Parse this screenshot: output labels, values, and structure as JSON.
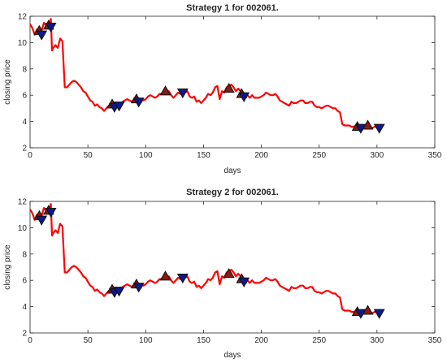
{
  "chart_data": [
    {
      "type": "line",
      "title": "Strategy 1 for 002061.",
      "xlabel": "days",
      "ylabel": "closing price",
      "xlim": [
        0,
        350
      ],
      "ylim": [
        2,
        12
      ],
      "x_ticks": [
        "0",
        "50",
        "100",
        "150",
        "200",
        "250",
        "300",
        "350"
      ],
      "y_ticks": [
        "2",
        "4",
        "6",
        "8",
        "10",
        "12"
      ],
      "grid": false,
      "series": [
        {
          "x": [
            0,
            2,
            4,
            6,
            8,
            10,
            12,
            14,
            16,
            18,
            19,
            20,
            22,
            24,
            26,
            28,
            30,
            32,
            34,
            36,
            38,
            40,
            42,
            44,
            46,
            48,
            50,
            52,
            54,
            56,
            58,
            60,
            62,
            64,
            66,
            68,
            70,
            72,
            74,
            76,
            78,
            80,
            82,
            84,
            86,
            88,
            90,
            92,
            94,
            96,
            98,
            100,
            102,
            104,
            106,
            108,
            110,
            112,
            114,
            116,
            118,
            120,
            122,
            124,
            126,
            128,
            130,
            132,
            134,
            136,
            138,
            140,
            142,
            144,
            146,
            148,
            150,
            152,
            154,
            156,
            158,
            160,
            162,
            164,
            166,
            168,
            170,
            172,
            174,
            176,
            178,
            180,
            182,
            184,
            186,
            188,
            190,
            192,
            194,
            196,
            198,
            200,
            202,
            204,
            206,
            208,
            210,
            212,
            214,
            216,
            218,
            220,
            222,
            224,
            226,
            228,
            230,
            232,
            234,
            236,
            238,
            240,
            242,
            244,
            246,
            248,
            250,
            252,
            254,
            256,
            258,
            260,
            262,
            264,
            266,
            268,
            270,
            272,
            274,
            276,
            278,
            280,
            282,
            284,
            286,
            288,
            290,
            292,
            294,
            296,
            298,
            300,
            302
          ],
          "values": [
            11.4,
            11.1,
            10.6,
            11.0,
            10.7,
            10.9,
            11.5,
            11.3,
            11.2,
            11.8,
            9.4,
            9.6,
            9.8,
            9.6,
            10.3,
            10.1,
            6.6,
            6.6,
            6.8,
            7.0,
            7.1,
            7.0,
            6.8,
            6.6,
            6.3,
            6.2,
            5.9,
            5.6,
            5.5,
            5.2,
            5.3,
            5.1,
            5.0,
            4.8,
            5.0,
            5.2,
            5.3,
            5.2,
            5.3,
            5.2,
            5.3,
            5.5,
            5.6,
            5.7,
            5.6,
            5.5,
            5.7,
            5.9,
            5.5,
            5.6,
            5.6,
            5.7,
            5.9,
            6.0,
            5.9,
            5.8,
            5.9,
            6.1,
            6.1,
            6.3,
            6.2,
            6.3,
            6.0,
            5.8,
            6.0,
            6.2,
            6.1,
            6.2,
            6.2,
            6.3,
            5.9,
            5.8,
            5.9,
            5.5,
            5.6,
            5.4,
            5.6,
            5.8,
            6.1,
            6.0,
            6.2,
            6.6,
            6.7,
            5.7,
            6.3,
            6.2,
            6.6,
            6.7,
            6.8,
            6.6,
            6.3,
            6.5,
            6.3,
            6.0,
            5.9,
            6.0,
            5.8,
            6.0,
            5.8,
            5.8,
            5.8,
            5.9,
            6.0,
            6.2,
            6.1,
            6.0,
            6.0,
            6.1,
            5.9,
            5.6,
            5.5,
            5.4,
            5.3,
            5.2,
            5.5,
            5.4,
            5.4,
            5.5,
            5.6,
            5.6,
            5.4,
            5.4,
            5.5,
            5.5,
            5.2,
            5.1,
            5.1,
            5.0,
            5.1,
            5.2,
            5.2,
            5.1,
            5.0,
            5.0,
            4.8,
            4.7,
            3.8,
            3.7,
            3.7,
            3.7,
            3.6,
            3.6,
            3.7,
            3.6,
            3.5,
            3.6,
            3.6,
            3.7,
            3.6,
            3.5,
            3.6,
            3.6,
            3.6
          ],
          "color": "#ff0000"
        }
      ],
      "markers": [
        {
          "x": 8,
          "y": 10.9,
          "kind": "buy",
          "fill": "#8b1a10"
        },
        {
          "x": 10,
          "y": 10.6,
          "kind": "sell",
          "fill": "#0a1a90"
        },
        {
          "x": 16,
          "y": 11.3,
          "kind": "buy",
          "fill": "#8b1a10"
        },
        {
          "x": 18,
          "y": 11.2,
          "kind": "sell",
          "fill": "#0a1a90"
        },
        {
          "x": 71,
          "y": 5.3,
          "kind": "buy",
          "fill": "#8b1a10"
        },
        {
          "x": 73,
          "y": 5.1,
          "kind": "sell",
          "fill": "#0a1a90"
        },
        {
          "x": 77,
          "y": 5.2,
          "kind": "sell",
          "fill": "#0a1a90"
        },
        {
          "x": 92,
          "y": 5.7,
          "kind": "buy",
          "fill": "#8b1a10"
        },
        {
          "x": 94,
          "y": 5.5,
          "kind": "sell",
          "fill": "#0a1a90"
        },
        {
          "x": 117,
          "y": 6.3,
          "kind": "buy",
          "fill": "#8b1a10"
        },
        {
          "x": 132,
          "y": 6.2,
          "kind": "sell",
          "fill": "#0a1a90"
        },
        {
          "x": 172,
          "y": 6.5,
          "kind": "buy",
          "fill": "#8b1a10"
        },
        {
          "x": 183,
          "y": 6.1,
          "kind": "buy",
          "fill": "#8b1a10"
        },
        {
          "x": 185,
          "y": 5.9,
          "kind": "sell",
          "fill": "#0a1a90"
        },
        {
          "x": 283,
          "y": 3.6,
          "kind": "buy",
          "fill": "#8b1a10"
        },
        {
          "x": 286,
          "y": 3.5,
          "kind": "sell",
          "fill": "#0a1a90"
        },
        {
          "x": 292,
          "y": 3.7,
          "kind": "buy",
          "fill": "#8b1a10"
        },
        {
          "x": 302,
          "y": 3.5,
          "kind": "sell",
          "fill": "#0a1a90"
        }
      ]
    },
    {
      "type": "line",
      "title": "Strategy 2 for 002061.",
      "xlabel": "days",
      "ylabel": "closing price",
      "xlim": [
        0,
        350
      ],
      "ylim": [
        2,
        12
      ],
      "x_ticks": [
        "0",
        "50",
        "100",
        "150",
        "200",
        "250",
        "300",
        "350"
      ],
      "y_ticks": [
        "2",
        "4",
        "6",
        "8",
        "10",
        "12"
      ],
      "grid": false,
      "series": [
        {
          "x": [
            0,
            2,
            4,
            6,
            8,
            10,
            12,
            14,
            16,
            18,
            19,
            20,
            22,
            24,
            26,
            28,
            30,
            32,
            34,
            36,
            38,
            40,
            42,
            44,
            46,
            48,
            50,
            52,
            54,
            56,
            58,
            60,
            62,
            64,
            66,
            68,
            70,
            72,
            74,
            76,
            78,
            80,
            82,
            84,
            86,
            88,
            90,
            92,
            94,
            96,
            98,
            100,
            102,
            104,
            106,
            108,
            110,
            112,
            114,
            116,
            118,
            120,
            122,
            124,
            126,
            128,
            130,
            132,
            134,
            136,
            138,
            140,
            142,
            144,
            146,
            148,
            150,
            152,
            154,
            156,
            158,
            160,
            162,
            164,
            166,
            168,
            170,
            172,
            174,
            176,
            178,
            180,
            182,
            184,
            186,
            188,
            190,
            192,
            194,
            196,
            198,
            200,
            202,
            204,
            206,
            208,
            210,
            212,
            214,
            216,
            218,
            220,
            222,
            224,
            226,
            228,
            230,
            232,
            234,
            236,
            238,
            240,
            242,
            244,
            246,
            248,
            250,
            252,
            254,
            256,
            258,
            260,
            262,
            264,
            266,
            268,
            270,
            272,
            274,
            276,
            278,
            280,
            282,
            284,
            286,
            288,
            290,
            292,
            294,
            296,
            298,
            300,
            302
          ],
          "values": [
            11.4,
            11.1,
            10.6,
            11.0,
            10.7,
            10.9,
            11.5,
            11.3,
            11.2,
            11.8,
            9.4,
            9.6,
            9.8,
            9.6,
            10.3,
            10.1,
            6.6,
            6.6,
            6.8,
            7.0,
            7.1,
            7.0,
            6.8,
            6.6,
            6.3,
            6.2,
            5.9,
            5.6,
            5.5,
            5.2,
            5.3,
            5.1,
            5.0,
            4.8,
            5.0,
            5.2,
            5.3,
            5.2,
            5.3,
            5.2,
            5.3,
            5.5,
            5.6,
            5.7,
            5.6,
            5.5,
            5.7,
            5.9,
            5.5,
            5.6,
            5.6,
            5.7,
            5.9,
            6.0,
            5.9,
            5.8,
            5.9,
            6.1,
            6.1,
            6.3,
            6.2,
            6.3,
            6.0,
            5.8,
            6.0,
            6.2,
            6.1,
            6.2,
            6.2,
            6.3,
            5.9,
            5.8,
            5.9,
            5.5,
            5.6,
            5.4,
            5.6,
            5.8,
            6.1,
            6.0,
            6.2,
            6.6,
            6.7,
            5.7,
            6.3,
            6.2,
            6.6,
            6.7,
            6.8,
            6.6,
            6.3,
            6.5,
            6.3,
            6.0,
            5.9,
            6.0,
            5.8,
            6.0,
            5.8,
            5.8,
            5.8,
            5.9,
            6.0,
            6.2,
            6.1,
            6.0,
            6.0,
            6.1,
            5.9,
            5.6,
            5.5,
            5.4,
            5.3,
            5.2,
            5.5,
            5.4,
            5.4,
            5.5,
            5.6,
            5.6,
            5.4,
            5.4,
            5.5,
            5.5,
            5.2,
            5.1,
            5.1,
            5.0,
            5.1,
            5.2,
            5.2,
            5.1,
            5.0,
            5.0,
            4.8,
            4.7,
            3.8,
            3.7,
            3.7,
            3.7,
            3.6,
            3.6,
            3.7,
            3.6,
            3.5,
            3.6,
            3.6,
            3.7,
            3.6,
            3.5,
            3.6,
            3.6,
            3.6
          ],
          "color": "#ff0000"
        }
      ],
      "markers": [
        {
          "x": 8,
          "y": 10.9,
          "kind": "buy",
          "fill": "#8b1a10"
        },
        {
          "x": 10,
          "y": 10.6,
          "kind": "sell",
          "fill": "#0a1a90"
        },
        {
          "x": 16,
          "y": 11.3,
          "kind": "buy",
          "fill": "#8b1a10"
        },
        {
          "x": 18,
          "y": 11.2,
          "kind": "sell",
          "fill": "#0a1a90"
        },
        {
          "x": 71,
          "y": 5.3,
          "kind": "buy",
          "fill": "#8b1a10"
        },
        {
          "x": 73,
          "y": 5.1,
          "kind": "sell",
          "fill": "#0a1a90"
        },
        {
          "x": 77,
          "y": 5.2,
          "kind": "sell",
          "fill": "#0a1a90"
        },
        {
          "x": 92,
          "y": 5.7,
          "kind": "buy",
          "fill": "#8b1a10"
        },
        {
          "x": 94,
          "y": 5.5,
          "kind": "sell",
          "fill": "#0a1a90"
        },
        {
          "x": 117,
          "y": 6.3,
          "kind": "buy",
          "fill": "#8b1a10"
        },
        {
          "x": 132,
          "y": 6.2,
          "kind": "sell",
          "fill": "#0a1a90"
        },
        {
          "x": 172,
          "y": 6.5,
          "kind": "buy",
          "fill": "#8b1a10"
        },
        {
          "x": 183,
          "y": 6.1,
          "kind": "buy",
          "fill": "#8b1a10"
        },
        {
          "x": 185,
          "y": 5.9,
          "kind": "sell",
          "fill": "#0a1a90"
        },
        {
          "x": 283,
          "y": 3.6,
          "kind": "buy",
          "fill": "#8b1a10"
        },
        {
          "x": 286,
          "y": 3.5,
          "kind": "sell",
          "fill": "#0a1a90"
        },
        {
          "x": 292,
          "y": 3.7,
          "kind": "buy",
          "fill": "#8b1a10"
        },
        {
          "x": 302,
          "y": 3.5,
          "kind": "sell",
          "fill": "#0a1a90"
        }
      ]
    }
  ]
}
